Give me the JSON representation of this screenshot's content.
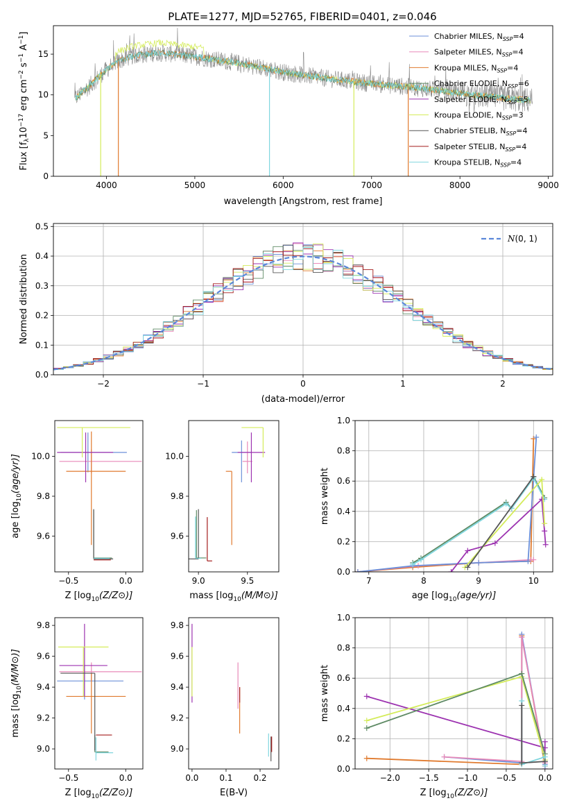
{
  "title": "PLATE=1277, MJD=52765, FIBERID=0401, z=0.046",
  "colors": {
    "chabrier_miles": "#6b8fd8",
    "salpeter_miles": "#e889b8",
    "kroupa_miles": "#e07a2e",
    "chabrier_elodie": "#5e8a64",
    "salpeter_elodie": "#9c32b0",
    "kroupa_elodie": "#d4ec5a",
    "chabrier_stelib": "#555555",
    "salpeter_stelib": "#a31b1b",
    "kroupa_stelib": "#7fd6de",
    "observed": "#888888",
    "normal": "#5b87d9"
  },
  "chart_data": [
    {
      "id": "spectrum",
      "type": "line",
      "xlabel": "wavelength [Angstrom, rest frame]",
      "ylabel": "Flux [f",
      "ylabel_full": "Flux [fλ10⁻¹⁷ erg cm⁻² s⁻¹ A⁻¹]",
      "xlim": [
        3400,
        9050
      ],
      "ylim": [
        0,
        18.5
      ],
      "xticks": [
        "4000",
        "5000",
        "6000",
        "7000",
        "8000",
        "9000"
      ],
      "yticks": [
        "0",
        "5",
        "10",
        "15"
      ],
      "legend_position": "upper right",
      "legend": [
        "Chabrier MILES, N_SSP=4",
        "Salpeter MILES, N_SSP=4",
        "Kroupa MILES, N_SSP=4",
        "Chabrier ELODIE, N_SSP=6",
        "Salpeter ELODIE, N_SSP=5",
        "Kroupa ELODIE, N_SSP=3",
        "Chabrier STELIB, N_SSP=4",
        "Salpeter STELIB, N_SSP=4",
        "Kroupa STELIB, N_SSP=4"
      ],
      "continuum_points": [
        [
          3650,
          9.6
        ],
        [
          3800,
          11.0
        ],
        [
          3950,
          12.6
        ],
        [
          4100,
          14.0
        ],
        [
          4300,
          14.8
        ],
        [
          4600,
          15.2
        ],
        [
          5000,
          14.7
        ],
        [
          5500,
          13.9
        ],
        [
          6000,
          12.8
        ],
        [
          6500,
          12.0
        ],
        [
          7000,
          11.4
        ],
        [
          7500,
          10.9
        ],
        [
          8000,
          10.2
        ],
        [
          8500,
          9.6
        ],
        [
          8800,
          9.3
        ]
      ],
      "absorption_dips": [
        [
          3935,
          0
        ],
        [
          4135,
          0
        ],
        [
          5845,
          0
        ],
        [
          6800,
          0
        ],
        [
          7415,
          0
        ]
      ]
    },
    {
      "id": "residuals",
      "type": "step",
      "xlabel": "(data-model)/error",
      "ylabel": "Normed distribution",
      "xlim": [
        -2.5,
        2.5
      ],
      "ylim": [
        0,
        0.51
      ],
      "xticks": [
        "−2",
        "−1",
        "0",
        "1",
        "2"
      ],
      "yticks": [
        "0.0",
        "0.1",
        "0.2",
        "0.3",
        "0.4",
        "0.5"
      ],
      "grid": true,
      "legend": [
        "N(0,1)"
      ],
      "bin_width": 0.1
    },
    {
      "id": "age_vs_Z",
      "type": "errorbar",
      "xlabel": "Z [log",
      "xlabel_full": "Z [log10(Z/Z⊙)]",
      "ylabel": "age [log10(age/yr)]",
      "xlim": [
        -0.62,
        0.15
      ],
      "ylim": [
        9.42,
        10.18
      ],
      "xticks": [
        "−0.5",
        "0.0"
      ],
      "yticks": [
        "9.6",
        "9.8",
        "10.0"
      ],
      "points": [
        {
          "series": "Chabrier MILES",
          "x": -0.33,
          "y": 10.02,
          "xerr": [
            0.24,
            0.34
          ],
          "yerr": [
            0.1,
            0.1
          ]
        },
        {
          "series": "Salpeter MILES",
          "x": -0.3,
          "y": 9.975,
          "xerr": [
            0.28,
            0.44
          ],
          "yerr": [
            0.06,
            0.06
          ]
        },
        {
          "series": "Kroupa MILES",
          "x": -0.3,
          "y": 9.925,
          "xerr": [
            0.22,
            0.3
          ],
          "yerr": [
            0.37,
            0.2
          ]
        },
        {
          "series": "Chabrier ELODIE",
          "x": -0.28,
          "y": 9.49,
          "xerr": [
            0.0,
            0.16
          ],
          "yerr": [
            0.0,
            0.24
          ]
        },
        {
          "series": "Salpeter ELODIE",
          "x": -0.35,
          "y": 10.02,
          "xerr": [
            0.25,
            0.24
          ],
          "yerr": [
            0.15,
            0.1
          ]
        },
        {
          "series": "Kroupa ELODIE",
          "x": -0.38,
          "y": 10.145,
          "xerr": [
            0.22,
            0.42
          ],
          "yerr": [
            0.15,
            0.0
          ]
        },
        {
          "series": "Chabrier STELIB",
          "x": -0.28,
          "y": 9.485,
          "xerr": [
            0.0,
            0.17
          ],
          "yerr": [
            0.0,
            0.25
          ]
        },
        {
          "series": "Salpeter STELIB",
          "x": -0.28,
          "y": 9.48,
          "xerr": [
            0.0,
            0.15
          ],
          "yerr": [
            0.0,
            0.0
          ]
        },
        {
          "series": "Kroupa STELIB",
          "x": -0.28,
          "y": 9.488,
          "xerr": [
            0.0,
            0.14
          ],
          "yerr": [
            0.0,
            0.0
          ]
        }
      ]
    },
    {
      "id": "age_vs_mass",
      "type": "errorbar",
      "xlabel": "mass [log",
      "xlabel_full": "mass [log10(M/M⊙)]",
      "xlim": [
        8.9,
        9.82
      ],
      "ylim": [
        9.42,
        10.18
      ],
      "xticks": [
        "9.0",
        "9.5"
      ],
      "yticks": [
        "9.6",
        "9.8",
        "10.0"
      ],
      "points": [
        {
          "series": "Chabrier MILES",
          "x": 9.44,
          "y": 10.02,
          "xerr": [
            0.1,
            0.1
          ],
          "yerr": [
            0.15,
            0.06
          ]
        },
        {
          "series": "Salpeter MILES",
          "x": 9.5,
          "y": 9.975,
          "xerr": [
            0.05,
            0.05
          ],
          "yerr": [
            0.06,
            0.1
          ]
        },
        {
          "series": "Kroupa MILES",
          "x": 9.34,
          "y": 9.925,
          "xerr": [
            0.06,
            0.0
          ],
          "yerr": [
            0.37,
            0.0
          ]
        },
        {
          "series": "Chabrier ELODIE",
          "x": 8.98,
          "y": 9.49,
          "xerr": [
            0.0,
            0.1
          ],
          "yerr": [
            0.0,
            0.24
          ]
        },
        {
          "series": "Salpeter ELODIE",
          "x": 9.54,
          "y": 10.02,
          "xerr": [
            0.14,
            0.14
          ],
          "yerr": [
            0.15,
            0.1
          ]
        },
        {
          "series": "Kroupa ELODIE",
          "x": 9.66,
          "y": 10.145,
          "xerr": [
            0.22,
            0.0
          ],
          "yerr": [
            0.15,
            0.0
          ]
        },
        {
          "series": "Chabrier STELIB",
          "x": 9.0,
          "y": 9.485,
          "xerr": [
            0.1,
            0.0
          ],
          "yerr": [
            0.0,
            0.25
          ]
        },
        {
          "series": "Salpeter STELIB",
          "x": 9.09,
          "y": 9.475,
          "xerr": [
            0.0,
            0.05
          ],
          "yerr": [
            0.0,
            0.22
          ]
        },
        {
          "series": "Kroupa STELIB",
          "x": 8.97,
          "y": 9.488,
          "xerr": [
            0.0,
            0.06
          ],
          "yerr": [
            0.0,
            0.21
          ]
        }
      ]
    },
    {
      "id": "weight_vs_age",
      "type": "line",
      "xlabel": "age [log",
      "xlabel_full": "age [log10(age/yr)]",
      "ylabel": "mass weight",
      "xlim": [
        6.75,
        10.35
      ],
      "ylim": [
        0,
        1.0
      ],
      "xticks": [
        "7",
        "8",
        "9",
        "10"
      ],
      "yticks": [
        "0.0",
        "0.2",
        "0.4",
        "0.6",
        "0.8",
        "1.0"
      ],
      "grid": true,
      "series": [
        {
          "key": "kroupa_miles",
          "x": [
            6.8,
            7.8,
            9.0,
            9.95,
            10.0
          ],
          "y": [
            0.0,
            0.03,
            0.06,
            0.07,
            0.88
          ]
        },
        {
          "key": "salpeter_miles",
          "x": [
            6.8,
            7.9,
            9.0,
            9.95,
            10.0
          ],
          "y": [
            0.0,
            0.04,
            0.06,
            0.08,
            0.08
          ]
        },
        {
          "key": "chabrier_miles",
          "x": [
            6.8,
            7.8,
            9.0,
            9.9,
            10.05
          ],
          "y": [
            0.0,
            0.04,
            0.06,
            0.07,
            0.89
          ]
        },
        {
          "key": "chabrier_elodie",
          "x": [
            7.8,
            7.95,
            9.5,
            9.6,
            10.0,
            10.2
          ],
          "y": [
            0.06,
            0.09,
            0.46,
            0.42,
            0.63,
            0.49
          ]
        },
        {
          "key": "kroupa_stelib",
          "x": [
            7.8,
            7.95,
            9.5,
            9.6,
            10.0,
            10.2
          ],
          "y": [
            0.05,
            0.08,
            0.45,
            0.42,
            0.62,
            0.48
          ]
        },
        {
          "key": "salpeter_elodie",
          "x": [
            8.5,
            8.8,
            9.3,
            10.15,
            10.2,
            10.22
          ],
          "y": [
            0.0,
            0.14,
            0.19,
            0.48,
            0.27,
            0.18
          ]
        },
        {
          "key": "kroupa_elodie",
          "x": [
            8.75,
            10.15,
            10.2
          ],
          "y": [
            0.03,
            0.61,
            0.32
          ]
        },
        {
          "key": "chabrier_stelib",
          "x": [
            8.8,
            10.0
          ],
          "y": [
            0.03,
            0.63
          ]
        }
      ]
    },
    {
      "id": "mass_vs_Z",
      "type": "errorbar",
      "xlabel": "Z [log",
      "xlabel_full": "Z [log10(Z/Z⊙)]",
      "ylabel": "mass [log10(M/M⊙)]",
      "xlim": [
        -0.62,
        0.15
      ],
      "ylim": [
        8.87,
        9.85
      ],
      "xticks": [
        "−0.5",
        "0.0"
      ],
      "yticks": [
        "9.0",
        "9.2",
        "9.4",
        "9.6",
        "9.8"
      ],
      "points": [
        {
          "series": "Chabrier MILES",
          "x": -0.36,
          "y": 9.44,
          "xerr": [
            0.24,
            0.34
          ],
          "yerr": [
            0.12,
            0.1
          ]
        },
        {
          "series": "Salpeter MILES",
          "x": -0.3,
          "y": 9.5,
          "xerr": [
            0.28,
            0.44
          ],
          "yerr": [
            0.06,
            0.06
          ]
        },
        {
          "series": "Kroupa MILES",
          "x": -0.3,
          "y": 9.34,
          "xerr": [
            0.22,
            0.3
          ],
          "yerr": [
            0.24,
            0.15
          ]
        },
        {
          "series": "Chabrier ELODIE",
          "x": -0.27,
          "y": 8.98,
          "xerr": [
            0.0,
            0.12
          ],
          "yerr": [
            0.0,
            0.11
          ]
        },
        {
          "series": "Salpeter ELODIE",
          "x": -0.36,
          "y": 9.54,
          "xerr": [
            0.22,
            0.2
          ],
          "yerr": [
            0.2,
            0.27
          ]
        },
        {
          "series": "Kroupa ELODIE",
          "x": -0.37,
          "y": 9.66,
          "xerr": [
            0.22,
            0.22
          ],
          "yerr": [
            0.32,
            0.0
          ]
        },
        {
          "series": "Chabrier STELIB",
          "x": -0.27,
          "y": 9.49,
          "xerr": [
            0.3,
            0.0
          ],
          "yerr": [
            0.5,
            0.0
          ]
        },
        {
          "series": "Salpeter STELIB",
          "x": -0.26,
          "y": 9.09,
          "xerr": [
            0.0,
            0.14
          ],
          "yerr": [
            0.0,
            0.0
          ]
        },
        {
          "series": "Kroupa STELIB",
          "x": -0.26,
          "y": 8.975,
          "xerr": [
            0.0,
            0.15
          ],
          "yerr": [
            0.05,
            0.1
          ]
        }
      ]
    },
    {
      "id": "mass_vs_EBV",
      "type": "errorbar",
      "xlabel": "E(B-V)",
      "xlim": [
        -0.01,
        0.255
      ],
      "ylim": [
        8.87,
        9.85
      ],
      "xticks": [
        "0.0",
        "0.1",
        "0.2"
      ],
      "yticks": [
        "9.0",
        "9.2",
        "9.4",
        "9.6",
        "9.8"
      ],
      "points": [
        {
          "series": "Salpeter ELODIE",
          "x": 0.0,
          "y": 9.55,
          "xerr": [
            0,
            0
          ],
          "yerr": [
            0.25,
            0.26
          ]
        },
        {
          "series": "Kroupa ELODIE",
          "x": 0.0,
          "y": 9.5,
          "xerr": [
            0,
            0
          ],
          "yerr": [
            0.16,
            0.16
          ]
        },
        {
          "series": "Salpeter MILES",
          "x": 0.135,
          "y": 9.4,
          "xerr": [
            0,
            0
          ],
          "yerr": [
            0.14,
            0.16
          ]
        },
        {
          "series": "Kroupa MILES",
          "x": 0.14,
          "y": 9.25,
          "xerr": [
            0,
            0
          ],
          "yerr": [
            0.15,
            0.15
          ]
        },
        {
          "series": "Salpeter STELIB",
          "x": 0.14,
          "y": 9.35,
          "xerr": [
            0,
            0
          ],
          "yerr": [
            0.05,
            0.05
          ]
        },
        {
          "series": "Kroupa STELIB",
          "x": 0.225,
          "y": 9.02,
          "xerr": [
            0,
            0
          ],
          "yerr": [
            0.07,
            0.08
          ]
        },
        {
          "series": "Chabrier STELIB",
          "x": 0.232,
          "y": 9.0,
          "xerr": [
            0,
            0
          ],
          "yerr": [
            0.08,
            0.08
          ]
        },
        {
          "series": "Salpeter STELIB",
          "x": 0.234,
          "y": 9.03,
          "xerr": [
            0,
            0
          ],
          "yerr": [
            0.05,
            0.05
          ]
        }
      ]
    },
    {
      "id": "weight_vs_Z",
      "type": "line",
      "xlabel": "Z [log",
      "xlabel_full": "Z [log10(Z/Z⊙)]",
      "ylabel": "mass weight",
      "xlim": [
        -2.45,
        0.1
      ],
      "ylim": [
        0,
        1.0
      ],
      "xticks": [
        "−2.0",
        "−1.5",
        "−1.0",
        "−0.5",
        "0.0"
      ],
      "yticks": [
        "0.0",
        "0.2",
        "0.4",
        "0.6",
        "0.8",
        "1.0"
      ],
      "grid": true,
      "series": [
        {
          "key": "kroupa_miles",
          "x": [
            -2.3,
            -0.3,
            -0.3,
            0.0
          ],
          "y": [
            0.07,
            0.03,
            0.88,
            0.02
          ]
        },
        {
          "key": "chabrier_miles",
          "x": [
            -1.3,
            -0.3,
            -0.3,
            0.0
          ],
          "y": [
            0.08,
            0.04,
            0.89,
            0.03
          ]
        },
        {
          "key": "salpeter_miles",
          "x": [
            -1.3,
            -0.3,
            -0.3,
            0.0
          ],
          "y": [
            0.08,
            0.05,
            0.87,
            0.04
          ]
        },
        {
          "key": "salpeter_elodie",
          "x": [
            -2.3,
            0.0,
            0.0,
            0.0
          ],
          "y": [
            0.48,
            0.14,
            0.18,
            0.0
          ]
        },
        {
          "key": "kroupa_elodie",
          "x": [
            -2.3,
            -0.3,
            0.0
          ],
          "y": [
            0.32,
            0.61,
            0.06
          ]
        },
        {
          "key": "chabrier_elodie",
          "x": [
            -2.3,
            -0.3,
            0.0,
            0.0
          ],
          "y": [
            0.27,
            0.63,
            0.1,
            0.05
          ]
        },
        {
          "key": "kroupa_stelib",
          "x": [
            -0.3,
            -0.3,
            0.0,
            0.0
          ],
          "y": [
            0.45,
            0.03,
            0.08,
            0.02
          ]
        },
        {
          "key": "chabrier_stelib",
          "x": [
            -0.3,
            -0.3,
            0.0
          ],
          "y": [
            0.42,
            0.04,
            0.05
          ]
        }
      ]
    }
  ]
}
